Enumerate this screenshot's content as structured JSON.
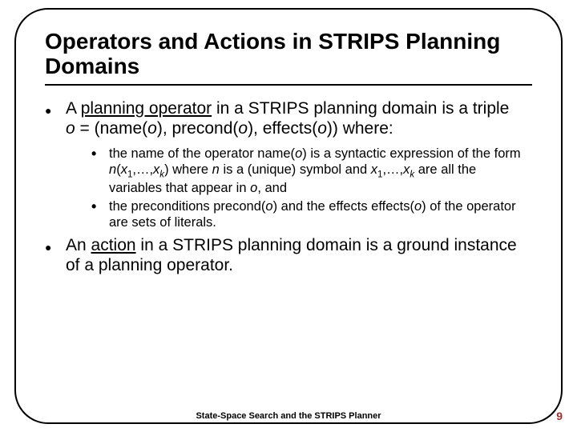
{
  "slide": {
    "title": "Operators and Actions in STRIPS Planning Domains",
    "footer": "State-Space Search and the STRIPS Planner",
    "page_number": "9",
    "colors": {
      "text": "#000000",
      "border": "#000000",
      "page_number": "#9c3031",
      "background": "#ffffff"
    },
    "font_sizes_pt": {
      "title": 21,
      "body": 16,
      "sub_body": 12,
      "footer": 8,
      "page_number": 10
    },
    "bullets": [
      {
        "prefix": "A ",
        "underlined": "planning operator",
        "rest_line1": " in a STRIPS planning domain is a triple",
        "formula_o": "o",
        "formula_eq": " = (name(",
        "formula_o2": "o",
        "formula_mid": "), precond(",
        "formula_o3": "o",
        "formula_mid2": "), effects(",
        "formula_o4": "o",
        "formula_end": ")) where:",
        "sub": [
          {
            "t1": "the name of the operator name(",
            "o1": "o",
            "t2": ") is a syntactic expression of the form ",
            "n1": "n",
            "t3": "(",
            "x1": "x",
            "s1": "1",
            "t4": ",…,",
            "x2": "x",
            "s2": "k",
            "t5": ") where ",
            "n2": "n",
            "t6": " is a (unique) symbol and ",
            "x3": "x",
            "s3": "1",
            "t7": ",…,",
            "x4": "x",
            "s4": "k",
            "t8": " are all the variables that appear in ",
            "o2": "o",
            "t9": ", and"
          },
          {
            "t1": "the preconditions precond(",
            "o1": "o",
            "t2": ") and the effects effects(",
            "o2": "o",
            "t3": ") of the operator are sets of literals."
          }
        ]
      },
      {
        "prefix": "An ",
        "underlined": "action",
        "rest": " in a STRIPS planning domain is a ground instance of a planning operator."
      }
    ]
  }
}
